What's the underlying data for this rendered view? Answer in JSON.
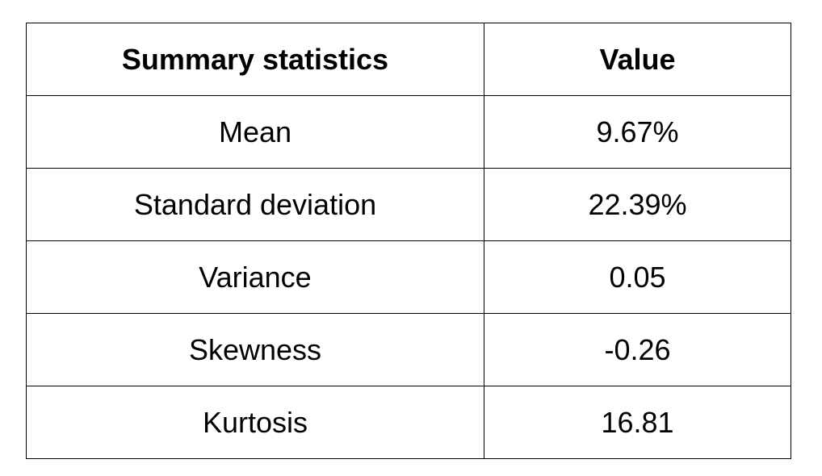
{
  "table": {
    "header": [
      "Summary statistics",
      "Value"
    ],
    "rows": [
      [
        "Mean",
        "9.67%"
      ],
      [
        "Standard deviation",
        "22.39%"
      ],
      [
        "Variance",
        "0.05"
      ],
      [
        "Skewness",
        "-0.26"
      ],
      [
        "Kurtosis",
        "16.81"
      ]
    ]
  }
}
